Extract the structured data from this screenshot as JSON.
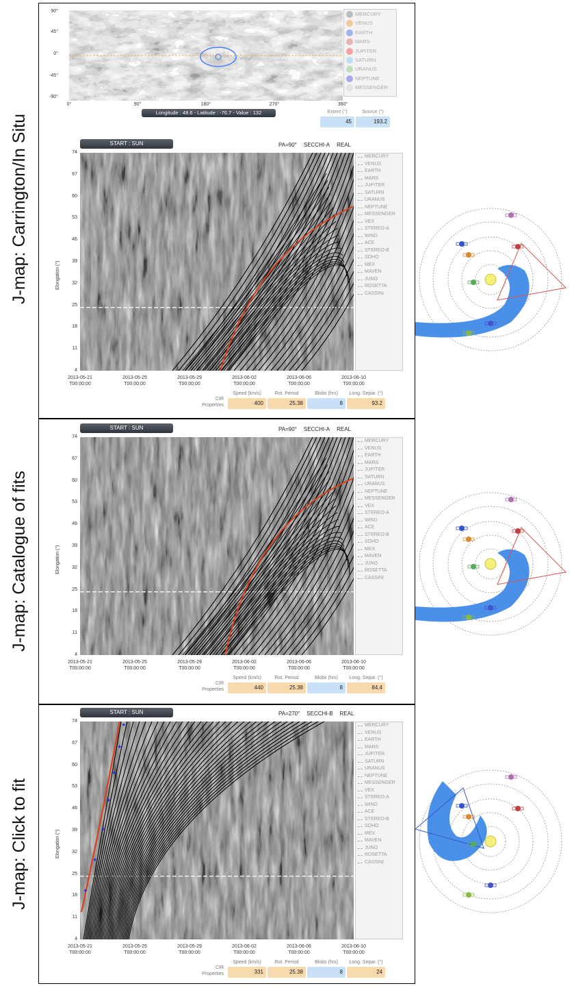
{
  "side_labels": [
    "J-map: Carrington/In Situ",
    "J-map: Catalogue of fits",
    "J-map: Click to fit"
  ],
  "map": {
    "lat_ticks": [
      "90°",
      "45°",
      "0°",
      "-45°",
      "-90°"
    ],
    "lon_ticks": [
      "0°",
      "90°",
      "180°",
      "270°",
      "360°"
    ],
    "readout": "Longitude : 48.6 - Latitude : -76.7 - Value : 132",
    "extent_label": "Extent (°)",
    "extent_value": "45",
    "source_label": "Source (°)",
    "source_value": "193.2"
  },
  "planet_legend": [
    "MERCURY",
    "VENUS",
    "EARTH",
    "MARS",
    "JUPITER",
    "SATURN",
    "URANUS",
    "NEPTUNE",
    "MESSENGER"
  ],
  "planet_colors": [
    "#bdbdbd",
    "#f0c99a",
    "#9fb4e6",
    "#e7b4b4",
    "#f0a4a4",
    "#bfe0ee",
    "#bfe0bf",
    "#a9a9e8",
    "#e4e4e4"
  ],
  "jmaps": [
    {
      "start": "START : SUN",
      "pa": "PA=90°",
      "instrument": "SECCHI-A",
      "mode": "REAL",
      "y_ticks": [
        "74",
        "67",
        "60",
        "53",
        "46",
        "39",
        "32",
        "25",
        "18",
        "11",
        "4"
      ],
      "y_axis": "Elongation (°)",
      "x_ticks": [
        [
          "2013-05-21",
          "T00:00:00"
        ],
        [
          "2013-05-25",
          "T00:00:00"
        ],
        [
          "2013-05-29",
          "T00:00:00"
        ],
        [
          "2013-06-02",
          "T00:00:00"
        ],
        [
          "2013-06-06",
          "T00:00:00"
        ],
        [
          "2013-06-10",
          "T00:00:00"
        ]
      ],
      "legend": [
        "MERCURY",
        "VENUS",
        "EARTH",
        "MARS",
        "JUPITER",
        "SATURN",
        "URANUS",
        "NEPTUNE",
        "MESSENGER",
        "VEX",
        "STEREO-A",
        "WIND",
        "ACE",
        "STEREO-B",
        "SOHO",
        "MEX",
        "MAVEN",
        "JUNO",
        "ROSETTA",
        "CASSINI"
      ],
      "props_caption": [
        "CIR",
        "Properties"
      ],
      "props": [
        {
          "label": "Speed (km/s)",
          "value": "400"
        },
        {
          "label": "Rot. Period",
          "value": "25.38"
        },
        {
          "label": "Blobs (hrs)",
          "value": "8"
        },
        {
          "label": "Long. Separ. (°)",
          "value": "93.2"
        }
      ]
    },
    {
      "start": "START : SUN",
      "pa": "PA=90°",
      "instrument": "SECCHI-A",
      "mode": "REAL",
      "y_ticks": [
        "74",
        "67",
        "60",
        "53",
        "46",
        "39",
        "32",
        "25",
        "18",
        "11",
        "4"
      ],
      "y_axis": "Elongation (°)",
      "x_ticks": [
        [
          "2013-05-21",
          "T00:00:00"
        ],
        [
          "2013-05-25",
          "T00:00:00"
        ],
        [
          "2013-05-29",
          "T00:00:00"
        ],
        [
          "2013-06-02",
          "T00:00:00"
        ],
        [
          "2013-06-06",
          "T00:00:00"
        ],
        [
          "2013-06-10",
          "T00:00:00"
        ]
      ],
      "legend": [
        "MERCURY",
        "VENUS",
        "EARTH",
        "MARS",
        "JUPITER",
        "SATURN",
        "URANUS",
        "NEPTUNE",
        "MESSENGER",
        "VEX",
        "STEREO-A",
        "WIND",
        "ACE",
        "STEREO-B",
        "SOHO",
        "MEX",
        "MAVEN",
        "JUNO",
        "ROSETTA",
        "CASSINI"
      ],
      "props_caption": [
        "CIR",
        "Properties"
      ],
      "props": [
        {
          "label": "Speed (km/s)",
          "value": "440"
        },
        {
          "label": "Rot. Period",
          "value": "25.38"
        },
        {
          "label": "Blobs (hrs)",
          "value": "8"
        },
        {
          "label": "Long. Separ. (°)",
          "value": "84.4"
        }
      ]
    },
    {
      "start": "START : SUN",
      "pa": "PA=270°",
      "instrument": "SECCHI-B",
      "mode": "REAL",
      "y_ticks": [
        "74",
        "67",
        "60",
        "53",
        "46",
        "39",
        "32",
        "25",
        "18",
        "11",
        "4"
      ],
      "y_axis": "Elongation (°)",
      "x_ticks": [
        [
          "2013-05-21",
          "T00:00:00"
        ],
        [
          "2013-05-25",
          "T00:00:00"
        ],
        [
          "2013-05-29",
          "T00:00:00"
        ],
        [
          "2013-06-02",
          "T00:00:00"
        ],
        [
          "2013-06-06",
          "T00:00:00"
        ],
        [
          "2013-06-10",
          "T00:00:00"
        ]
      ],
      "legend": [
        "MERCURY",
        "VENUS",
        "EARTH",
        "MARS",
        "JUPITER",
        "SATURN",
        "URANUS",
        "NEPTUNE",
        "MESSENGER",
        "VEX",
        "STEREO-A",
        "WIND",
        "ACE",
        "STEREO-B",
        "SOHO",
        "MEX",
        "MAVEN",
        "JUNO",
        "ROSETTA",
        "CASSINI"
      ],
      "props_caption": [
        "CIR",
        "Properties"
      ],
      "props": [
        {
          "label": "Speed (km/s)",
          "value": "331"
        },
        {
          "label": "Rot. Period",
          "value": "25.38"
        },
        {
          "label": "Blobs (hrs)",
          "value": "8"
        },
        {
          "label": "Long. Separ. (°)",
          "value": "24"
        }
      ]
    }
  ],
  "colors": {
    "fit_curve": "#d9401c",
    "cir_fill": "#4a90e8",
    "orbit": "#888888",
    "cone": "#d9534f",
    "cone_b": "#3355cc"
  }
}
